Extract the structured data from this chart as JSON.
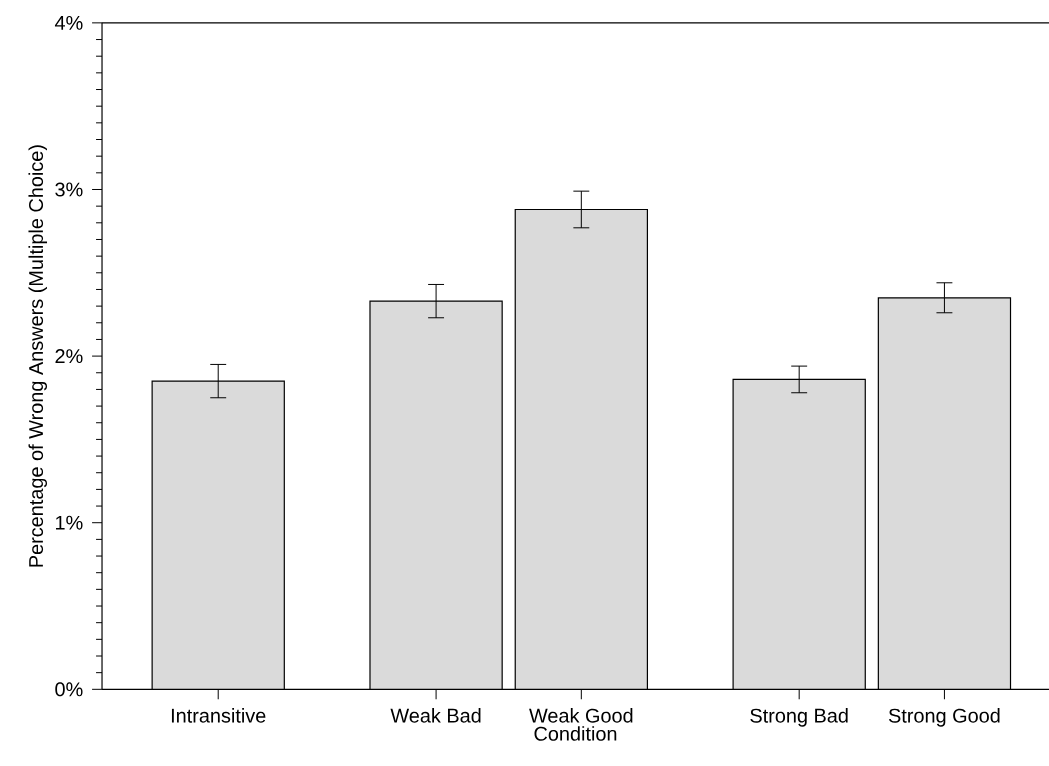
{
  "chart_data": {
    "type": "bar",
    "xlabel": "Condition",
    "ylabel": "Percentage of Wrong Answers (Multiple Choice)",
    "categories": [
      "Intransitive",
      "Weak Bad",
      "Weak Good",
      "Strong Bad",
      "Strong Good"
    ],
    "values": [
      1.85,
      2.33,
      2.88,
      1.86,
      2.35
    ],
    "errors": [
      0.1,
      0.1,
      0.11,
      0.08,
      0.09
    ],
    "color": "#dadada",
    "ylim": [
      0,
      4
    ],
    "yticks": [
      {
        "value": 0,
        "label": "0%"
      },
      {
        "value": 1,
        "label": "1%"
      },
      {
        "value": 2,
        "label": "2%"
      },
      {
        "value": 3,
        "label": "3%"
      },
      {
        "value": 4,
        "label": "4%"
      }
    ],
    "grid": false
  }
}
